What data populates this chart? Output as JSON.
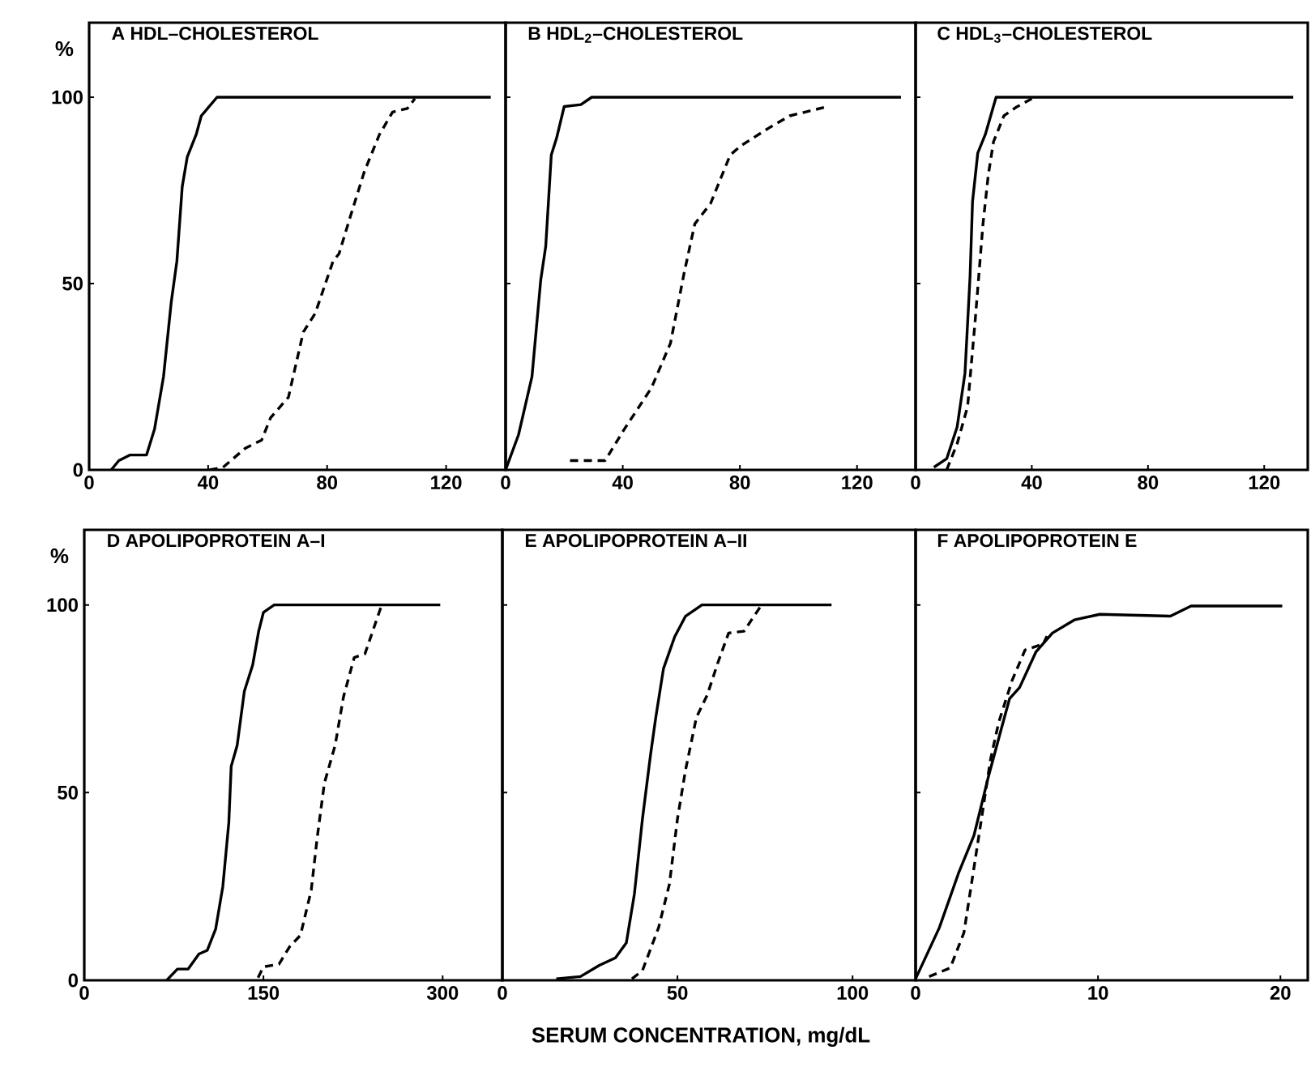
{
  "chart_data": [
    {
      "type": "line",
      "title": "A   HDL–CHOLESTEROL",
      "ylabel": "%",
      "xlim": [
        0,
        140
      ],
      "ylim": [
        0,
        120
      ],
      "xticks": [
        0,
        40,
        80,
        120
      ],
      "yticks": [
        0,
        50,
        100
      ],
      "grid": false,
      "series": [
        {
          "color": "#000000",
          "line_style": "solid",
          "x": [
            7.4,
            10,
            13.8,
            19.3,
            22,
            25,
            27.6,
            29.5,
            31.3,
            33,
            36,
            37.7,
            43,
            135
          ],
          "values": [
            0,
            2.5,
            4,
            4,
            11,
            25,
            45,
            56,
            76,
            84,
            90,
            95,
            100,
            100
          ]
        },
        {
          "color": "#000000",
          "line_style": "dashed",
          "x": [
            40.5,
            45,
            52.5,
            58,
            61,
            67,
            72,
            76,
            82,
            84,
            88,
            92.5,
            97.6,
            102,
            107,
            109.5
          ],
          "values": [
            0,
            0.7,
            5.8,
            8,
            14,
            19.5,
            37,
            42,
            56,
            58,
            68.5,
            80,
            90,
            96,
            97,
            99.6
          ]
        }
      ]
    },
    {
      "type": "line",
      "title": "B   HDL$_{2}$–CHOLESTEROL",
      "xlim": [
        0,
        140
      ],
      "ylim": [
        0,
        120
      ],
      "xticks": [
        0,
        40,
        80,
        120
      ],
      "yticks": [
        0,
        50,
        100
      ],
      "tick_labels": "x",
      "grid": false,
      "series": [
        {
          "color": "#000000",
          "line_style": "solid",
          "x": [
            0,
            4.4,
            9,
            12,
            13.7,
            15.6,
            17.4,
            20,
            25.7,
            29.4,
            135
          ],
          "values": [
            0,
            9.4,
            25,
            51,
            60,
            84.5,
            89,
            97.5,
            98,
            100,
            100
          ]
        },
        {
          "color": "#000000",
          "line_style": "dashed",
          "x": [
            22,
            34,
            40.6,
            49.8,
            56.3,
            61,
            64.6,
            70,
            76.7,
            80.4,
            89.6,
            97,
            110
          ],
          "values": [
            2.5,
            2.5,
            11,
            22,
            34,
            53,
            66,
            71.5,
            84.5,
            87,
            91.6,
            95,
            97.5
          ]
        }
      ]
    },
    {
      "type": "line",
      "title": "C   HDL$_{3}$–CHOLESTEROL",
      "xlim": [
        0,
        135
      ],
      "ylim": [
        0,
        120
      ],
      "xticks": [
        0,
        40,
        80,
        120
      ],
      "yticks": [
        0,
        50,
        100
      ],
      "tick_labels": "x",
      "grid": false,
      "series": [
        {
          "color": "#000000",
          "line_style": "solid",
          "x": [
            6.3,
            10.7,
            14.3,
            17,
            18.75,
            19.6,
            21.4,
            24,
            27.7,
            130
          ],
          "values": [
            0.7,
            3,
            11.5,
            26,
            52,
            72,
            85,
            90,
            100,
            100
          ]
        },
        {
          "color": "#000000",
          "line_style": "dashed",
          "x": [
            10.7,
            14.3,
            17.9,
            20.5,
            23.2,
            25,
            26.8,
            30.4,
            34.8,
            40
          ],
          "values": [
            0,
            7,
            17,
            40,
            66,
            79,
            88,
            95,
            97.4,
            99.6
          ]
        }
      ]
    },
    {
      "type": "line",
      "title": "D   APOLIPOPROTEIN A–I",
      "ylabel": "%",
      "xlim": [
        0,
        350
      ],
      "ylim": [
        0,
        120
      ],
      "xticks": [
        0,
        150,
        300
      ],
      "yticks": [
        0,
        50,
        100
      ],
      "grid": false,
      "series": [
        {
          "color": "#000000",
          "line_style": "solid",
          "x": [
            69,
            78,
            87,
            96,
            103,
            110,
            116,
            121,
            123,
            128,
            134,
            141,
            146,
            150,
            159,
            298
          ],
          "values": [
            0,
            3,
            3,
            7,
            8,
            13.7,
            25,
            42,
            57,
            62.6,
            77,
            84,
            93,
            98,
            100,
            100
          ]
        },
        {
          "color": "#000000",
          "line_style": "dashed",
          "x": [
            145.5,
            150,
            163,
            172,
            181,
            190,
            195,
            201,
            210,
            217,
            226,
            235,
            249
          ],
          "values": [
            0.7,
            3.6,
            4.3,
            9,
            12,
            24,
            38,
            52.5,
            62.6,
            75.5,
            86,
            87,
            100
          ]
        }
      ]
    },
    {
      "type": "line",
      "title": "E   APOLIPOPROTEIN A–II",
      "xlabel": "SERUM CONCENTRATION, mg/dL",
      "xlim": [
        0,
        118
      ],
      "ylim": [
        0,
        120
      ],
      "xticks": [
        0,
        50,
        100
      ],
      "yticks": [
        0,
        50,
        100
      ],
      "tick_labels": "x",
      "grid": false,
      "series": [
        {
          "color": "#000000",
          "line_style": "solid",
          "x": [
            15.4,
            22.3,
            27.7,
            32.3,
            35.4,
            37.7,
            40,
            42.3,
            43.8,
            46,
            49.2,
            52.3,
            57,
            94
          ],
          "values": [
            0.4,
            1,
            4,
            6,
            10,
            23,
            43,
            60,
            70,
            83,
            91.5,
            97,
            100,
            100
          ]
        },
        {
          "color": "#000000",
          "line_style": "dashed",
          "x": [
            37,
            40,
            44.6,
            47.7,
            50,
            52.3,
            55.4,
            58.5,
            61.5,
            64.6,
            69,
            73.8
          ],
          "values": [
            0.4,
            2.6,
            14,
            25.6,
            43,
            56,
            70,
            76,
            84.5,
            92.5,
            93,
            99.7
          ]
        }
      ]
    },
    {
      "type": "line",
      "title": "F   APOLIPOPROTEIN E",
      "xlim": [
        0,
        21.5
      ],
      "ylim": [
        0,
        120
      ],
      "xticks": [
        0,
        10,
        20
      ],
      "yticks": [
        0,
        50,
        100
      ],
      "tick_labels": "x",
      "grid": false,
      "series": [
        {
          "color": "#000000",
          "line_style": "solid",
          "x": [
            0,
            1.3,
            2.35,
            3.2,
            4,
            4.7,
            5.15,
            5.7,
            6.6,
            7.5,
            8.7,
            10.1,
            13.97,
            15.1,
            20.1
          ],
          "values": [
            0.4,
            14,
            28.5,
            38.6,
            54.4,
            67,
            75,
            78,
            87.5,
            92.5,
            96,
            97.5,
            97,
            99.7,
            99.7
          ]
        },
        {
          "color": "#000000",
          "line_style": "dashed",
          "x": [
            0.74,
            1.9,
            2.65,
            3.2,
            3.7,
            4.1,
            4.56,
            5.3,
            6,
            7,
            7.2
          ],
          "values": [
            1,
            3.3,
            12.7,
            30,
            45.8,
            58.7,
            68.8,
            80,
            88,
            89.6,
            91.7
          ]
        }
      ]
    }
  ]
}
